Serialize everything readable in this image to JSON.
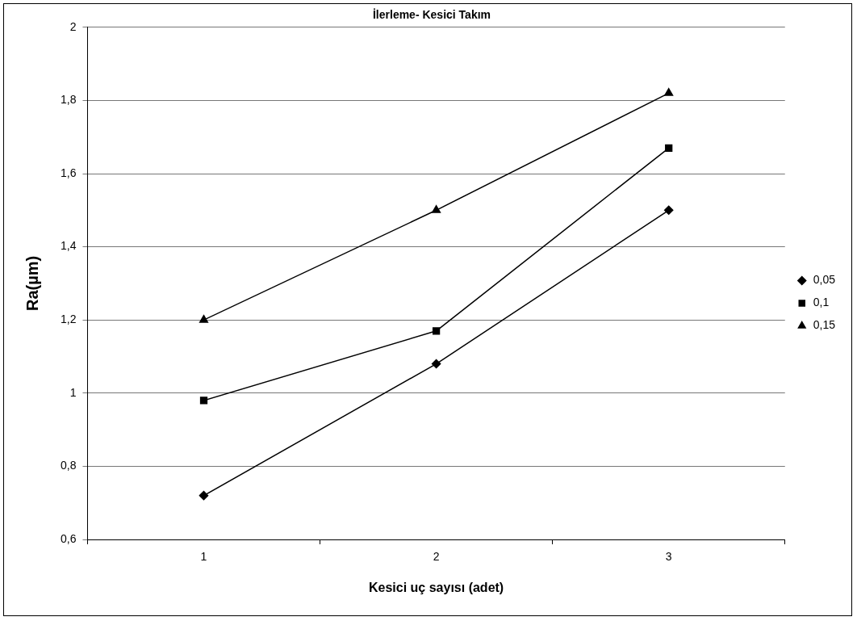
{
  "chart_data": {
    "type": "line",
    "title": "İlerleme- Kesici Takım",
    "xlabel": "Kesici uç sayısı (adet)",
    "ylabel": "Ra(µm)",
    "categories": [
      "1",
      "2",
      "3"
    ],
    "series": [
      {
        "name": "0,05",
        "color": "#000000",
        "marker": "diamond",
        "values": [
          0.72,
          1.08,
          1.5
        ]
      },
      {
        "name": "0,1",
        "color": "#000000",
        "marker": "square",
        "values": [
          0.98,
          1.17,
          1.67
        ]
      },
      {
        "name": "0,15",
        "color": "#000000",
        "marker": "triangle",
        "values": [
          1.2,
          1.5,
          1.82
        ]
      }
    ],
    "ylim": [
      0.6,
      2
    ],
    "yticks": [
      {
        "value": 0.6,
        "label": "0,6"
      },
      {
        "value": 0.8,
        "label": "0,8"
      },
      1,
      {
        "value": 1.2,
        "label": "1,2"
      },
      {
        "value": 1.4,
        "label": "1,4"
      },
      {
        "value": 1.6,
        "label": "1,6"
      },
      {
        "value": 1.8,
        "label": "1,8"
      },
      2
    ],
    "grid": "y",
    "legend": "right",
    "line_style": "solid"
  }
}
